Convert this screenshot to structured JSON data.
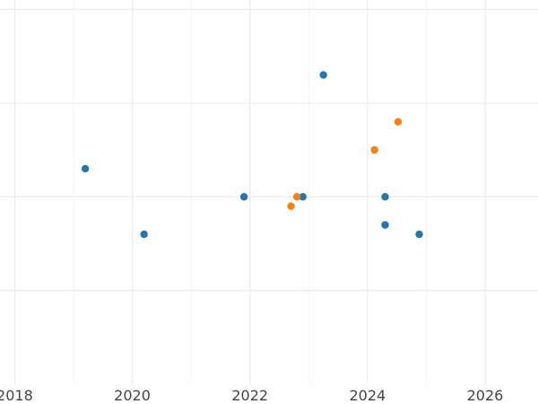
{
  "chart_data": {
    "type": "scatter",
    "title": "",
    "xlabel": "",
    "ylabel": "",
    "xlim": [
      2017.75,
      2026.9
    ],
    "ylim": [
      -1.0,
      1.05
    ],
    "x_ticks": [
      2018,
      2020,
      2022,
      2024,
      2026
    ],
    "x_tick_labels": [
      "2018",
      "2020",
      "2022",
      "2024",
      "2026"
    ],
    "y_gridlines": [
      -0.5,
      0,
      0.5,
      1.0
    ],
    "grid": true,
    "legend": "none",
    "series": [
      {
        "color": "#1f77b4",
        "points": [
          {
            "x": 2019.2,
            "y": 0.15
          },
          {
            "x": 2020.2,
            "y": -0.2
          },
          {
            "x": 2021.9,
            "y": 0.0
          },
          {
            "x": 2022.9,
            "y": 0.0
          },
          {
            "x": 2023.25,
            "y": 0.65
          },
          {
            "x": 2024.3,
            "y": 0.0
          },
          {
            "x": 2024.3,
            "y": -0.15
          },
          {
            "x": 2024.3,
            "y": -0.15
          },
          {
            "x": 2024.88,
            "y": -0.2
          }
        ]
      },
      {
        "color": "#ff7f0e",
        "points": [
          {
            "x": 2022.7,
            "y": -0.05
          },
          {
            "x": 2022.8,
            "y": 0.0
          },
          {
            "x": 2024.12,
            "y": 0.25
          },
          {
            "x": 2024.52,
            "y": 0.4
          }
        ]
      }
    ]
  }
}
